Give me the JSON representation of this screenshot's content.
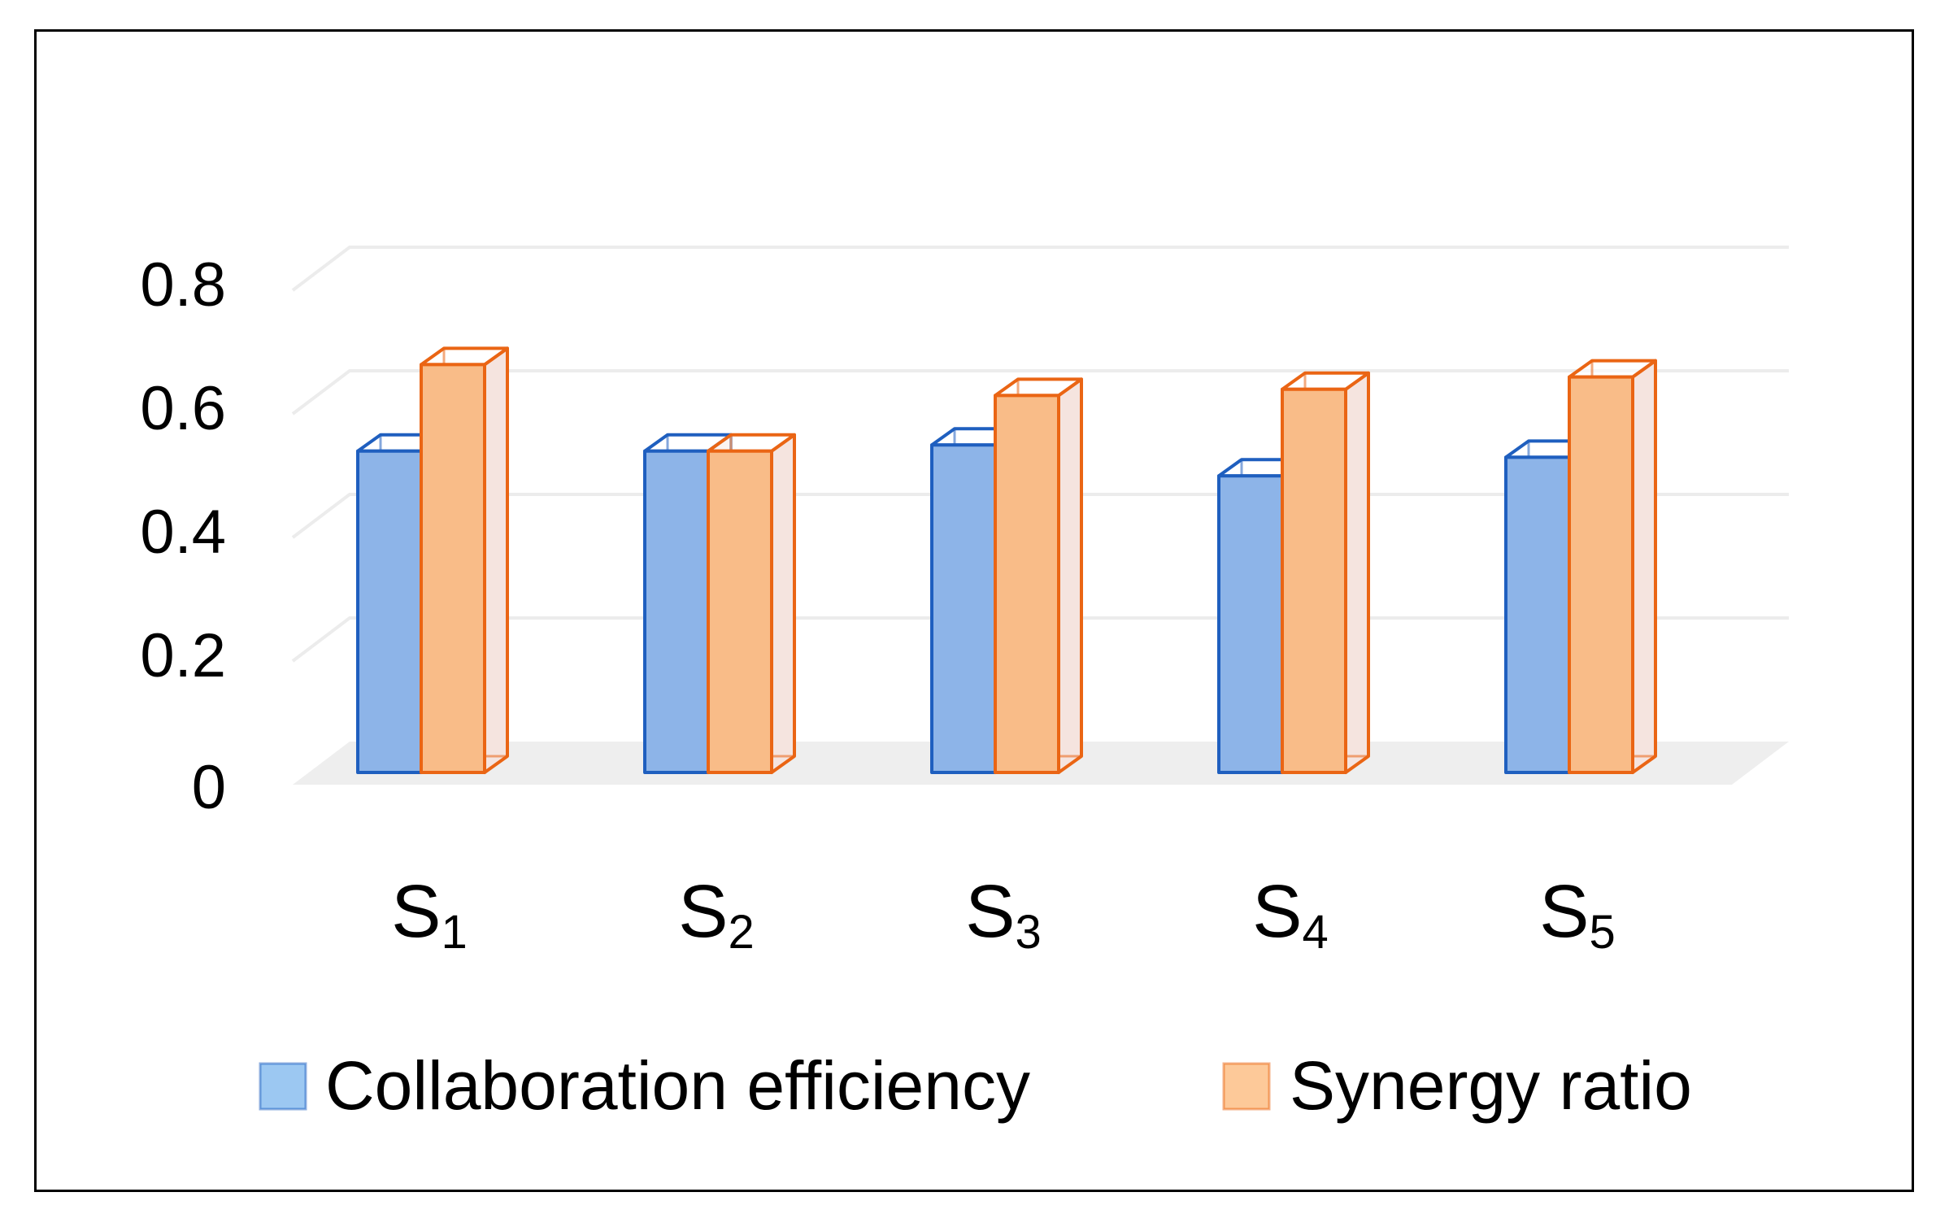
{
  "chart_data": {
    "type": "bar",
    "style": "3d-clustered-column",
    "title": "",
    "xlabel": "",
    "ylabel": "",
    "ylim": [
      0,
      0.8
    ],
    "yticks": [
      0,
      0.2,
      0.4,
      0.6,
      0.8
    ],
    "ytick_labels": [
      "0",
      "0.2",
      "0.4",
      "0.6",
      "0.8"
    ],
    "grid": true,
    "legend_position": "bottom",
    "categories": [
      {
        "base": "S",
        "sub": "1"
      },
      {
        "base": "S",
        "sub": "2"
      },
      {
        "base": "S",
        "sub": "3"
      },
      {
        "base": "S",
        "sub": "4"
      },
      {
        "base": "S",
        "sub": "5"
      }
    ],
    "series": [
      {
        "name": "Collaboration efficiency",
        "values": [
          0.52,
          0.52,
          0.53,
          0.48,
          0.51
        ]
      },
      {
        "name": "Synergy ratio",
        "values": [
          0.66,
          0.52,
          0.61,
          0.62,
          0.64
        ]
      }
    ]
  },
  "colors": {
    "series_0_fill": "#8db4e8",
    "series_0_stroke": "#1f5fbf",
    "series_0_legend": "#9cc8f2",
    "series_1_fill": "#f9bc88",
    "series_1_stroke": "#ea6514",
    "series_1_legend": "#fdc999",
    "back_face": "#f5e4df",
    "floor": "#eeeeee",
    "grid": "#ececec"
  }
}
